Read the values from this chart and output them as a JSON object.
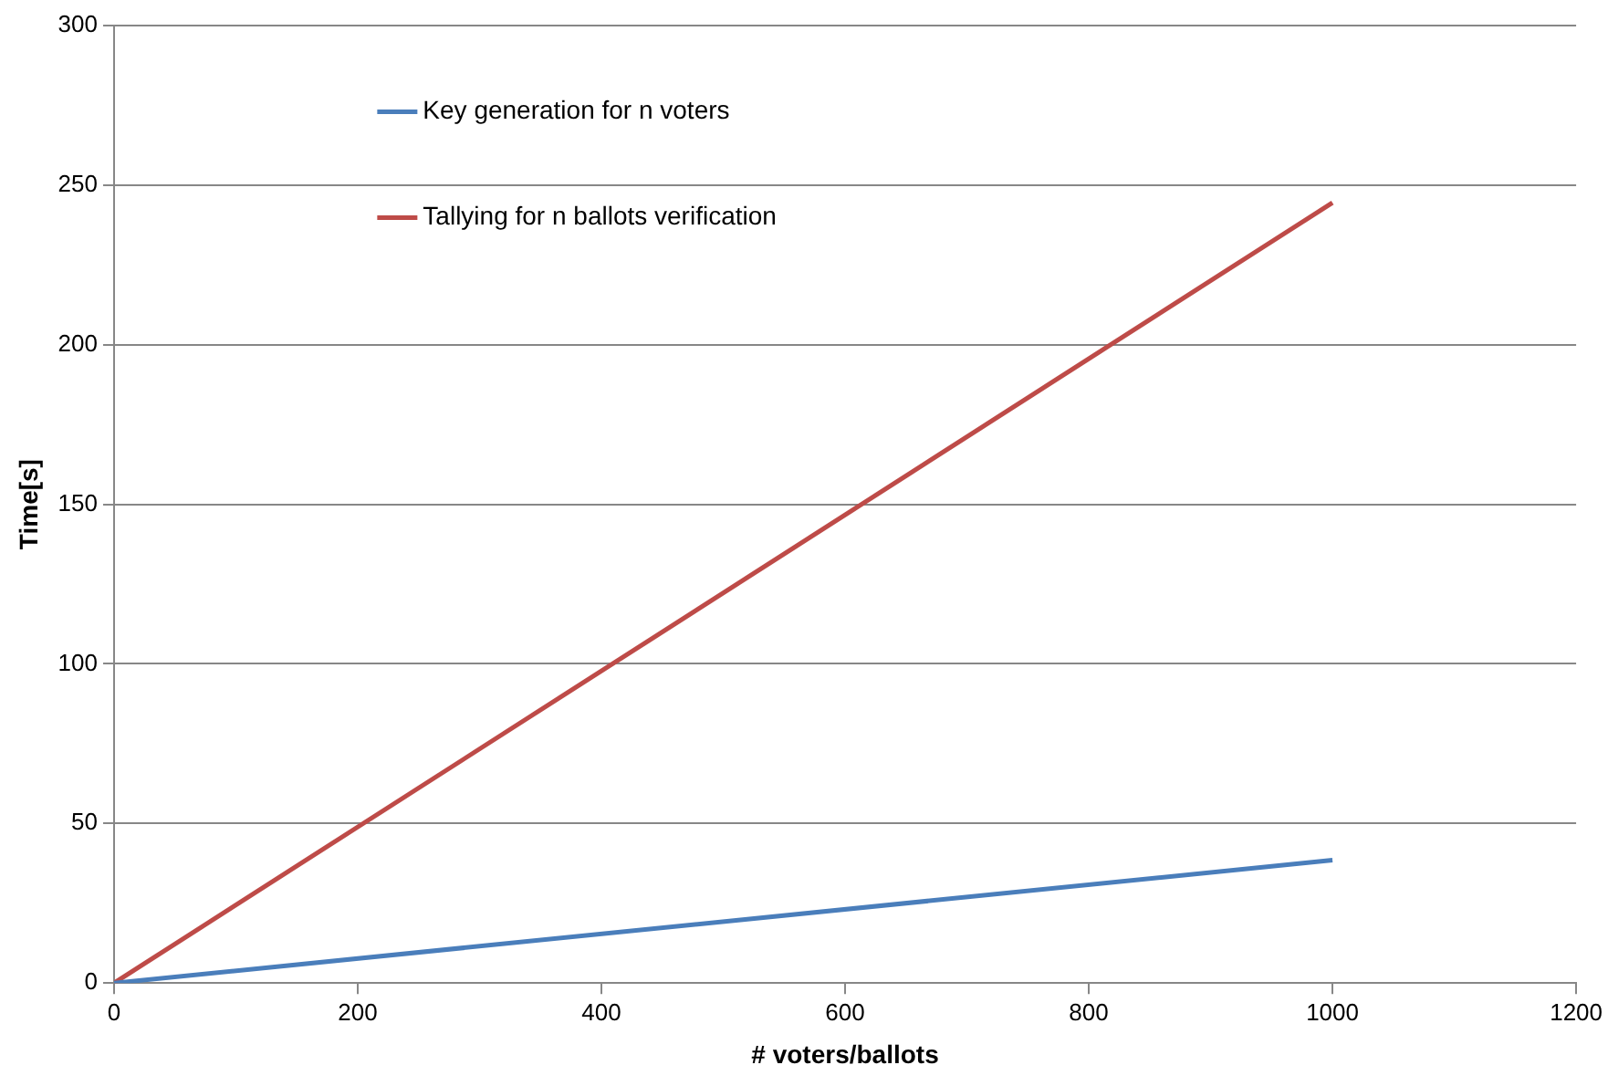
{
  "chart_data": {
    "type": "line",
    "xlabel": "# voters/ballots",
    "ylabel": "Time[s]",
    "x": [
      0,
      1000
    ],
    "series": [
      {
        "name": "Key generation for n voters",
        "color": "#4a7ebb",
        "values": [
          0,
          38.5
        ]
      },
      {
        "name": "Tallying for n ballots verification",
        "color": "#be4b48",
        "values": [
          0,
          244.5
        ]
      }
    ],
    "xlim": [
      0,
      1200
    ],
    "xticks": [
      0,
      200,
      400,
      600,
      800,
      1000,
      1200
    ],
    "ylim": [
      0,
      300
    ],
    "yticks": [
      0,
      50,
      100,
      150,
      200,
      250,
      300
    ],
    "grid": "y",
    "legend": "top",
    "marker": "none",
    "line_style": "solid"
  }
}
